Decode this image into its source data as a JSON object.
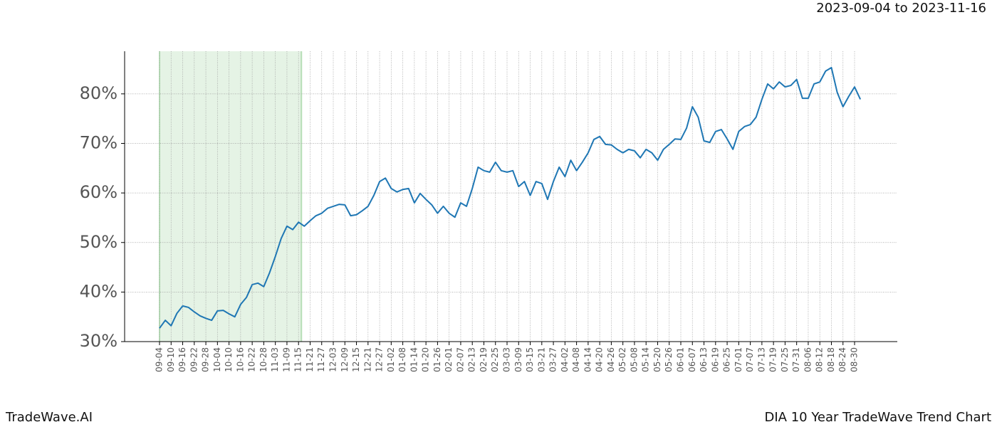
{
  "chart_data": {
    "type": "line",
    "title": "2023-09-04 to 2023-11-16",
    "footer_left": "TradeWave.AI",
    "footer_right": "DIA 10 Year TradeWave Trend Chart",
    "categories": [
      "09-04",
      null,
      "09-10",
      null,
      "09-16",
      null,
      "09-22",
      null,
      "09-28",
      null,
      "10-04",
      null,
      "10-10",
      null,
      "10-16",
      null,
      "10-22",
      null,
      "10-28",
      null,
      "11-03",
      null,
      "11-09",
      null,
      "11-15",
      null,
      "11-21",
      null,
      "11-27",
      null,
      "12-03",
      null,
      "12-09",
      null,
      "12-15",
      null,
      "12-21",
      null,
      "12-27",
      null,
      "01-02",
      null,
      "01-08",
      null,
      "01-14",
      null,
      "01-20",
      null,
      "01-26",
      null,
      "02-01",
      null,
      "02-07",
      null,
      "02-13",
      null,
      "02-19",
      null,
      "02-25",
      null,
      "03-03",
      null,
      "03-09",
      null,
      "03-15",
      null,
      "03-21",
      null,
      "03-27",
      null,
      "04-02",
      null,
      "04-08",
      null,
      "04-14",
      null,
      "04-20",
      null,
      "04-26",
      null,
      "05-02",
      null,
      "05-08",
      null,
      "05-14",
      null,
      "05-20",
      null,
      "05-26",
      null,
      "06-01",
      null,
      "06-07",
      null,
      "06-13",
      null,
      "06-19",
      null,
      "06-25",
      null,
      "07-01",
      null,
      "07-07",
      null,
      "07-13",
      null,
      "07-19",
      null,
      "07-25",
      null,
      "07-31",
      null,
      "08-06",
      null,
      "08-12",
      null,
      "08-18",
      null,
      "08-24",
      null,
      "08-30",
      null
    ],
    "series": [
      {
        "color": "#1f77b4",
        "values": [
          32.7,
          34.3,
          33.2,
          35.7,
          37.2,
          36.9,
          36.0,
          35.2,
          34.7,
          34.3,
          36.2,
          36.3,
          35.6,
          35.0,
          37.5,
          38.9,
          41.5,
          41.8,
          41.1,
          43.9,
          47.2,
          50.8,
          53.3,
          52.6,
          54.1,
          53.3,
          54.4,
          55.4,
          55.9,
          56.9,
          57.3,
          57.7,
          57.6,
          55.4,
          55.6,
          56.4,
          57.3,
          59.5,
          62.3,
          63.0,
          60.9,
          60.2,
          60.7,
          60.9,
          58.0,
          59.9,
          58.7,
          57.6,
          55.9,
          57.3,
          55.9,
          55.1,
          58.0,
          57.3,
          60.9,
          65.2,
          64.5,
          64.2,
          66.2,
          64.5,
          64.2,
          64.5,
          61.3,
          62.3,
          59.5,
          62.3,
          61.9,
          58.7,
          62.3,
          65.2,
          63.3,
          66.6,
          64.5,
          66.2,
          68.1,
          70.8,
          71.4,
          69.8,
          69.7,
          68.8,
          68.1,
          68.8,
          68.5,
          67.1,
          68.8,
          68.1,
          66.6,
          68.8,
          69.8,
          70.9,
          70.8,
          73.1,
          77.4,
          75.3,
          70.5,
          70.2,
          72.4,
          72.8,
          70.9,
          68.8,
          72.4,
          73.4,
          73.8,
          75.3,
          78.9,
          82.0,
          81.0,
          82.4,
          81.4,
          81.7,
          82.9,
          79.1,
          79.1,
          82.0,
          82.4,
          84.6,
          85.3,
          80.3,
          77.4,
          79.5,
          81.4,
          78.9
        ]
      }
    ],
    "ylim": [
      30,
      88.6
    ],
    "yticks": [
      {
        "value": 30,
        "label": "30%"
      },
      {
        "value": 40,
        "label": "40%"
      },
      {
        "value": 50,
        "label": "50%"
      },
      {
        "value": 60,
        "label": "60%"
      },
      {
        "value": 70,
        "label": "70%"
      },
      {
        "value": 80,
        "label": "80%"
      }
    ],
    "shaded_span": [
      "09-04",
      "11-15"
    ],
    "shade_color": "#2ca02c",
    "grid": true
  }
}
